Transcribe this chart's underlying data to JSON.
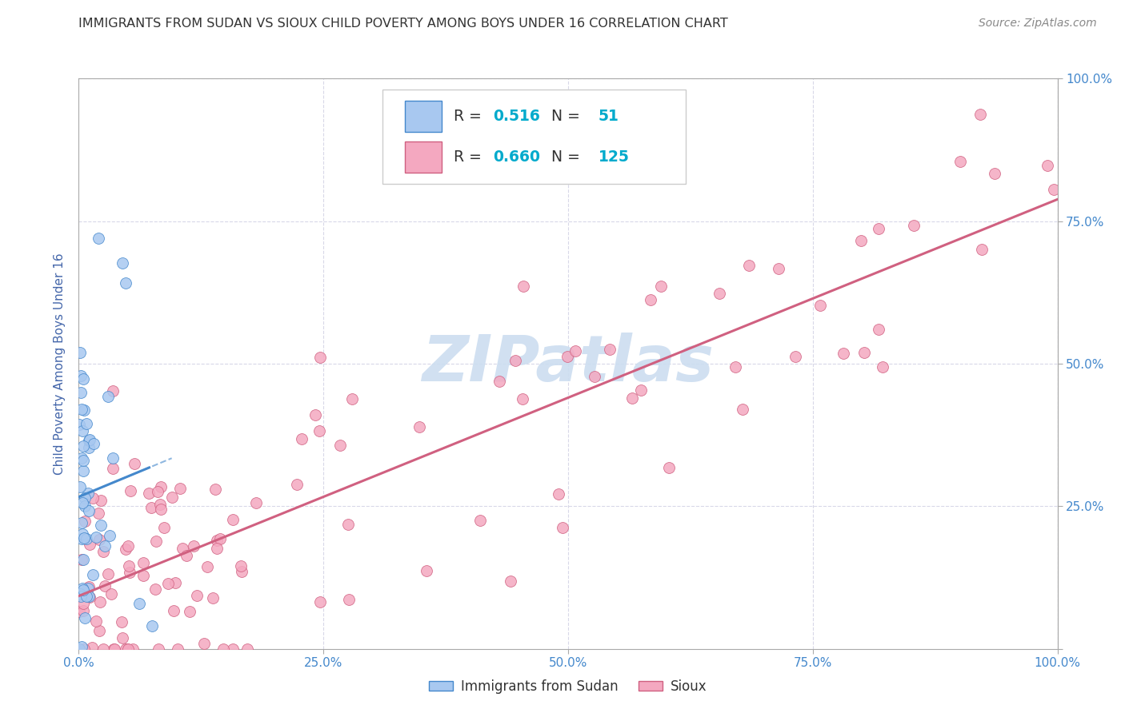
{
  "title": "IMMIGRANTS FROM SUDAN VS SIOUX CHILD POVERTY AMONG BOYS UNDER 16 CORRELATION CHART",
  "source": "Source: ZipAtlas.com",
  "ylabel": "Child Poverty Among Boys Under 16",
  "color_blue": "#a8c8f0",
  "color_pink": "#f4a8c0",
  "line_blue": "#4488cc",
  "line_pink": "#d06080",
  "watermark_color": "#ccddf0",
  "background": "#ffffff",
  "grid_color": "#d8d8e8",
  "title_color": "#333333",
  "axis_label_color": "#4466aa",
  "tick_color": "#4488cc",
  "legend_value_color": "#00aacc"
}
